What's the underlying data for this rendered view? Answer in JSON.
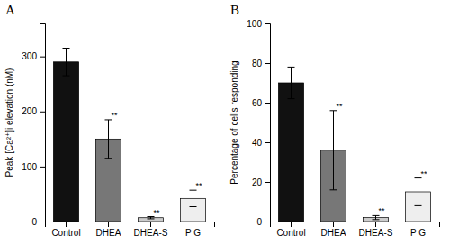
{
  "chart_data": [
    {
      "type": "bar",
      "title": "A",
      "categories": [
        "Control",
        "DHEA",
        "DHEA-S",
        "P G"
      ],
      "values": [
        290,
        150,
        7,
        42
      ],
      "errors": [
        25,
        35,
        2,
        15
      ],
      "ylabel": "Peak [Ca²⁺]i elevation (nM)",
      "ylim": [
        0,
        360
      ],
      "yticks": [
        0,
        100,
        200,
        300
      ],
      "colors": [
        "#111111",
        "#777777",
        "#cccccc",
        "#eeeeee"
      ],
      "annotations": [
        {
          "text": "**",
          "category": "DHEA"
        },
        {
          "text": "**",
          "category": "DHEA-S"
        },
        {
          "text": "**",
          "category": "P G"
        }
      ]
    },
    {
      "type": "bar",
      "title": "B",
      "categories": [
        "Control",
        "DHEA",
        "DHEA-S",
        "P G"
      ],
      "values": [
        70,
        36,
        2,
        15
      ],
      "errors": [
        8,
        20,
        1,
        7
      ],
      "ylabel": "Percentage of cells responding",
      "ylim": [
        0,
        100
      ],
      "yticks": [
        0,
        20,
        40,
        60,
        80,
        100
      ],
      "colors": [
        "#111111",
        "#777777",
        "#cccccc",
        "#eeeeee"
      ],
      "annotations": [
        {
          "text": "**",
          "category": "DHEA"
        },
        {
          "text": "**",
          "category": "DHEA-S"
        },
        {
          "text": "**",
          "category": "P G"
        }
      ]
    }
  ]
}
